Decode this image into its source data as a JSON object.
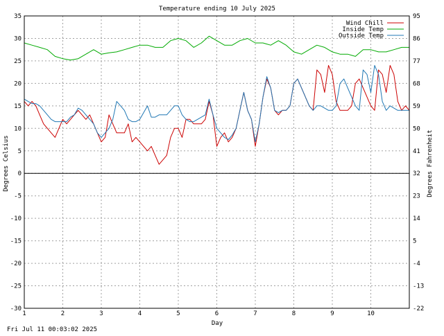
{
  "chart_data": {
    "type": "line",
    "title": "Temperature ending 10 July 2025",
    "xlabel": "Day",
    "ylabel": "Degrees Celsius",
    "ylabel_right": "Degrees Fahrenheit",
    "footer": "Fri Jul 11 00:03:02 2025",
    "xlim": [
      1,
      11
    ],
    "ylim": [
      -30,
      35
    ],
    "x_ticks": [
      "1",
      "2",
      "3",
      "4",
      "5",
      "6",
      "7",
      "8",
      "9",
      "10"
    ],
    "y_ticks": [
      "35",
      "30",
      "25",
      "20",
      "15",
      "10",
      "5",
      "0",
      "-5",
      "-10",
      "-15",
      "-20",
      "-25",
      "-30"
    ],
    "y_ticks_right": [
      "95",
      "86",
      "77",
      "68",
      "59",
      "50",
      "41",
      "32",
      "23",
      "14",
      "5",
      "-4",
      "-13",
      "-22"
    ],
    "grid": true,
    "legend_position": "top-right",
    "series": [
      {
        "name": "Wind Chill",
        "color": "#cc0000",
        "x": [
          1.0,
          1.1,
          1.2,
          1.3,
          1.4,
          1.5,
          1.6,
          1.7,
          1.8,
          1.9,
          2.0,
          2.1,
          2.2,
          2.3,
          2.4,
          2.5,
          2.6,
          2.7,
          2.8,
          2.9,
          3.0,
          3.1,
          3.2,
          3.3,
          3.4,
          3.5,
          3.6,
          3.7,
          3.8,
          3.9,
          4.0,
          4.1,
          4.2,
          4.3,
          4.4,
          4.5,
          4.6,
          4.7,
          4.8,
          4.9,
          5.0,
          5.1,
          5.2,
          5.3,
          5.4,
          5.5,
          5.6,
          5.7,
          5.8,
          5.9,
          6.0,
          6.1,
          6.2,
          6.3,
          6.4,
          6.5,
          6.6,
          6.7,
          6.8,
          6.9,
          7.0,
          7.1,
          7.2,
          7.3,
          7.4,
          7.5,
          7.6,
          7.7,
          7.8,
          7.9,
          8.0,
          8.1,
          8.2,
          8.3,
          8.4,
          8.5,
          8.6,
          8.7,
          8.8,
          8.9,
          9.0,
          9.1,
          9.2,
          9.3,
          9.4,
          9.5,
          9.6,
          9.7,
          9.8,
          9.9,
          10.0,
          10.1,
          10.2,
          10.3,
          10.4,
          10.5,
          10.6,
          10.7,
          10.8,
          10.9,
          11.0
        ],
        "values": [
          16,
          15,
          16,
          15,
          13,
          11,
          10,
          9,
          8,
          10,
          12,
          11,
          12,
          13,
          14,
          13,
          12,
          13,
          11,
          9,
          7,
          8,
          13,
          11,
          9,
          9,
          9,
          11,
          7,
          8,
          7,
          6,
          5,
          6,
          4,
          2,
          3,
          4,
          8,
          10,
          10,
          8,
          12,
          12,
          11,
          11,
          11,
          12,
          16,
          13,
          6,
          8,
          9,
          7,
          8,
          10,
          14,
          18,
          14,
          12,
          6,
          11,
          17,
          21,
          19,
          14,
          13,
          14,
          14,
          15,
          20,
          21,
          19,
          17,
          15,
          14,
          23,
          22,
          18,
          24,
          22,
          16,
          14,
          14,
          14,
          15,
          20,
          21,
          19,
          17,
          15,
          14,
          23,
          22,
          18,
          24,
          22,
          16,
          14,
          15,
          14
        ]
      },
      {
        "name": "Inside Temp",
        "color": "#00aa00",
        "x": [
          1.0,
          1.2,
          1.4,
          1.6,
          1.8,
          2.0,
          2.2,
          2.4,
          2.6,
          2.8,
          3.0,
          3.2,
          3.4,
          3.6,
          3.8,
          4.0,
          4.2,
          4.4,
          4.6,
          4.8,
          5.0,
          5.2,
          5.4,
          5.6,
          5.8,
          6.0,
          6.2,
          6.4,
          6.6,
          6.8,
          7.0,
          7.2,
          7.4,
          7.6,
          7.8,
          8.0,
          8.2,
          8.4,
          8.6,
          8.8,
          9.0,
          9.2,
          9.4,
          9.6,
          9.8,
          10.0,
          10.2,
          10.4,
          10.6,
          10.8,
          11.0
        ],
        "values": [
          29,
          28.5,
          28,
          27.5,
          26,
          25.5,
          25.2,
          25.5,
          26.5,
          27.5,
          26.5,
          26.8,
          27,
          27.5,
          28,
          28.5,
          28.5,
          28,
          28,
          29.5,
          30,
          29.5,
          28,
          29,
          30.5,
          29.5,
          28.5,
          28.5,
          29.5,
          30,
          29,
          29,
          28.5,
          29.5,
          28.5,
          27,
          26.5,
          27.5,
          28.5,
          28,
          27,
          26.5,
          26.5,
          26,
          27.5,
          27.5,
          27,
          27,
          27.5,
          28,
          28
        ]
      },
      {
        "name": "Outside Temp",
        "color": "#1f77b4",
        "x": [
          1.0,
          1.1,
          1.2,
          1.3,
          1.4,
          1.5,
          1.6,
          1.7,
          1.8,
          1.9,
          2.0,
          2.1,
          2.2,
          2.3,
          2.4,
          2.5,
          2.6,
          2.7,
          2.8,
          2.9,
          3.0,
          3.1,
          3.2,
          3.3,
          3.4,
          3.5,
          3.6,
          3.7,
          3.8,
          3.9,
          4.0,
          4.1,
          4.2,
          4.3,
          4.4,
          4.5,
          4.6,
          4.7,
          4.8,
          4.9,
          5.0,
          5.1,
          5.2,
          5.3,
          5.4,
          5.5,
          5.6,
          5.7,
          5.8,
          5.9,
          6.0,
          6.1,
          6.2,
          6.3,
          6.4,
          6.5,
          6.6,
          6.7,
          6.8,
          6.9,
          7.0,
          7.1,
          7.2,
          7.3,
          7.4,
          7.5,
          7.6,
          7.7,
          7.8,
          7.9,
          8.0,
          8.1,
          8.2,
          8.3,
          8.4,
          8.5,
          8.6,
          8.7,
          8.8,
          8.9,
          9.0,
          9.1,
          9.2,
          9.3,
          9.4,
          9.5,
          9.6,
          9.7,
          9.8,
          9.9,
          10.0,
          10.1,
          10.2,
          10.3,
          10.4,
          10.5,
          10.6,
          10.7,
          10.8,
          10.9,
          11.0
        ],
        "values": [
          16.5,
          16,
          15.5,
          15.5,
          15,
          14,
          13,
          12,
          11.5,
          11.5,
          11.5,
          11.5,
          12.5,
          13,
          14.5,
          14,
          13,
          12,
          11,
          9,
          8,
          9,
          10,
          12,
          16,
          15,
          14,
          12,
          11.5,
          11.5,
          12,
          13.5,
          15,
          12.5,
          12.5,
          13,
          13,
          13,
          14,
          15,
          15,
          13,
          12,
          11.5,
          11.5,
          12,
          12.5,
          13,
          16.5,
          13,
          10,
          9,
          8,
          7.5,
          8.5,
          10,
          14,
          18,
          14,
          12,
          7,
          11,
          17,
          21.5,
          19,
          14,
          13.5,
          14,
          14,
          15,
          20,
          21,
          19,
          17,
          15,
          14,
          15,
          15,
          14.5,
          14,
          14,
          15,
          20,
          21,
          19,
          17,
          15,
          14,
          23,
          22,
          18,
          24,
          22,
          16,
          14,
          15,
          14.5,
          14,
          14,
          14,
          14
        ]
      }
    ]
  }
}
